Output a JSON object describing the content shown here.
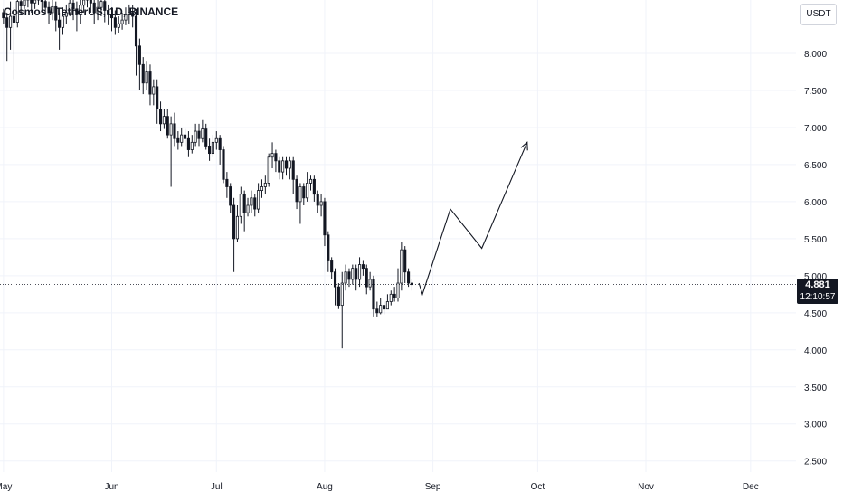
{
  "header": {
    "symbol_title": "Cosmos / TetherUS, 1D, BINANCE"
  },
  "toolbar": {
    "currency_label": "USDT"
  },
  "last_price": {
    "price": "4.881",
    "countdown": "12:10:57",
    "value": 4.881
  },
  "colors": {
    "candle": "#131722",
    "grid": "#f0f3fa",
    "axis_text": "#131722",
    "price_line": "#131722"
  },
  "chart_data": {
    "type": "candlestick",
    "y_ticks": [
      "8.000",
      "7.500",
      "7.000",
      "6.500",
      "6.000",
      "5.500",
      "5.000",
      "4.500",
      "4.000",
      "3.500",
      "3.000",
      "2.500"
    ],
    "ylim": [
      2.35,
      8.72
    ],
    "x_ticks": [
      {
        "label": "May",
        "day": 0
      },
      {
        "label": "Jun",
        "day": 31
      },
      {
        "label": "Jul",
        "day": 61
      },
      {
        "label": "Aug",
        "day": 92
      },
      {
        "label": "Sep",
        "day": 123
      },
      {
        "label": "Oct",
        "day": 153
      },
      {
        "label": "Nov",
        "day": 184
      },
      {
        "label": "Dec",
        "day": 214
      }
    ],
    "x_range_days": [
      -1,
      227
    ],
    "candles": [
      [
        0,
        8.55,
        8.48,
        8.6,
        8.4
      ],
      [
        1,
        8.48,
        8.35,
        8.55,
        7.9
      ],
      [
        2,
        8.35,
        8.5,
        8.7,
        8.05
      ],
      [
        3,
        8.5,
        8.42,
        8.62,
        7.65
      ],
      [
        4,
        8.42,
        8.7,
        8.8,
        8.35
      ],
      [
        5,
        8.7,
        8.64,
        8.8,
        8.52
      ],
      [
        6,
        8.64,
        8.72,
        8.85,
        8.6
      ],
      [
        7,
        8.72,
        8.75,
        8.85,
        8.62
      ],
      [
        8,
        8.75,
        8.68,
        8.82,
        8.55
      ],
      [
        9,
        8.68,
        8.72,
        8.8,
        8.6
      ],
      [
        10,
        8.72,
        8.78,
        8.85,
        8.66
      ],
      [
        11,
        8.78,
        8.7,
        8.85,
        8.58
      ],
      [
        12,
        8.7,
        8.62,
        8.76,
        8.52
      ],
      [
        13,
        8.62,
        8.55,
        8.7,
        8.4
      ],
      [
        14,
        8.55,
        8.63,
        8.72,
        8.45
      ],
      [
        15,
        8.63,
        8.45,
        8.7,
        8.3
      ],
      [
        16,
        8.45,
        8.35,
        8.55,
        8.05
      ],
      [
        17,
        8.35,
        8.5,
        8.62,
        8.25
      ],
      [
        18,
        8.5,
        8.55,
        8.66,
        8.4
      ],
      [
        19,
        8.55,
        8.68,
        8.78,
        8.5
      ],
      [
        20,
        8.68,
        8.6,
        8.76,
        8.45
      ],
      [
        21,
        8.6,
        8.52,
        8.7,
        8.3
      ],
      [
        22,
        8.52,
        8.65,
        8.75,
        8.4
      ],
      [
        23,
        8.65,
        8.72,
        8.8,
        8.55
      ],
      [
        24,
        8.72,
        8.75,
        8.85,
        8.62
      ],
      [
        25,
        8.75,
        8.68,
        8.82,
        8.55
      ],
      [
        26,
        8.68,
        8.55,
        8.75,
        8.4
      ],
      [
        27,
        8.55,
        8.62,
        8.72,
        8.45
      ],
      [
        28,
        8.62,
        8.7,
        8.8,
        8.5
      ],
      [
        29,
        8.7,
        8.58,
        8.78,
        8.42
      ],
      [
        30,
        8.58,
        8.52,
        8.66,
        8.38
      ],
      [
        31,
        8.52,
        8.48,
        8.62,
        8.3
      ],
      [
        32,
        8.48,
        8.35,
        8.58,
        8.25
      ],
      [
        33,
        8.35,
        8.4,
        8.5,
        8.28
      ],
      [
        34,
        8.4,
        8.45,
        8.55,
        8.32
      ],
      [
        35,
        8.45,
        8.52,
        8.62,
        8.38
      ],
      [
        36,
        8.52,
        8.55,
        8.66,
        8.4
      ],
      [
        37,
        8.55,
        8.5,
        8.65,
        8.35
      ],
      [
        38,
        8.5,
        8.1,
        8.6,
        7.7
      ],
      [
        39,
        8.1,
        7.85,
        8.2,
        7.5
      ],
      [
        40,
        7.85,
        7.6,
        7.95,
        7.45
      ],
      [
        41,
        7.6,
        7.75,
        7.9,
        7.5
      ],
      [
        42,
        7.75,
        7.45,
        7.85,
        7.3
      ],
      [
        43,
        7.45,
        7.55,
        7.65,
        7.3
      ],
      [
        44,
        7.55,
        7.25,
        7.65,
        7.05
      ],
      [
        45,
        7.25,
        7.05,
        7.35,
        6.95
      ],
      [
        46,
        7.05,
        7.15,
        7.25,
        6.98
      ],
      [
        47,
        7.15,
        6.9,
        7.25,
        6.85
      ],
      [
        48,
        6.9,
        7.05,
        7.15,
        6.2
      ],
      [
        49,
        7.05,
        6.85,
        7.2,
        6.75
      ],
      [
        50,
        6.85,
        6.8,
        6.95,
        6.7
      ],
      [
        51,
        6.8,
        6.9,
        7.0,
        6.75
      ],
      [
        52,
        6.9,
        6.85,
        6.98,
        6.75
      ],
      [
        53,
        6.85,
        6.7,
        6.95,
        6.6
      ],
      [
        54,
        6.7,
        6.8,
        6.9,
        6.65
      ],
      [
        55,
        6.8,
        6.95,
        7.05,
        6.75
      ],
      [
        56,
        6.95,
        6.85,
        7.05,
        6.75
      ],
      [
        57,
        6.85,
        6.98,
        7.1,
        6.8
      ],
      [
        58,
        6.98,
        6.75,
        7.05,
        6.7
      ],
      [
        59,
        6.75,
        6.65,
        6.85,
        6.55
      ],
      [
        60,
        6.65,
        6.8,
        6.9,
        6.6
      ],
      [
        61,
        6.8,
        6.85,
        6.95,
        6.7
      ],
      [
        62,
        6.85,
        6.7,
        6.9,
        6.5
      ],
      [
        63,
        6.7,
        6.3,
        6.75,
        6.25
      ],
      [
        64,
        6.3,
        6.2,
        6.4,
        6.05
      ],
      [
        65,
        6.2,
        5.95,
        6.25,
        5.85
      ],
      [
        66,
        5.95,
        5.5,
        6.05,
        5.05
      ],
      [
        67,
        5.5,
        5.8,
        5.95,
        5.45
      ],
      [
        68,
        5.8,
        6.1,
        6.2,
        5.7
      ],
      [
        69,
        6.1,
        5.85,
        6.15,
        5.6
      ],
      [
        70,
        5.85,
        5.95,
        6.05,
        5.8
      ],
      [
        71,
        5.95,
        6.05,
        6.15,
        5.85
      ],
      [
        72,
        6.05,
        5.9,
        6.1,
        5.8
      ],
      [
        73,
        5.9,
        6.15,
        6.25,
        5.85
      ],
      [
        74,
        6.15,
        6.2,
        6.3,
        6.05
      ],
      [
        75,
        6.2,
        6.25,
        6.35,
        6.1
      ],
      [
        76,
        6.25,
        6.6,
        6.65,
        6.2
      ],
      [
        77,
        6.6,
        6.65,
        6.8,
        6.45
      ],
      [
        78,
        6.65,
        6.55,
        6.7,
        6.4
      ],
      [
        79,
        6.55,
        6.4,
        6.6,
        6.3
      ],
      [
        80,
        6.4,
        6.55,
        6.6,
        6.3
      ],
      [
        81,
        6.55,
        6.45,
        6.6,
        6.35
      ],
      [
        82,
        6.45,
        6.55,
        6.6,
        6.3
      ],
      [
        83,
        6.55,
        6.3,
        6.6,
        6.1
      ],
      [
        84,
        6.3,
        6.0,
        6.35,
        5.9
      ],
      [
        85,
        6.0,
        6.2,
        6.25,
        5.7
      ],
      [
        86,
        6.2,
        6.05,
        6.25,
        5.95
      ],
      [
        87,
        6.05,
        6.25,
        6.4,
        6.0
      ],
      [
        88,
        6.25,
        6.3,
        6.35,
        6.15
      ],
      [
        89,
        6.3,
        6.1,
        6.35,
        6.0
      ],
      [
        90,
        6.1,
        5.95,
        6.15,
        5.85
      ],
      [
        91,
        5.95,
        6.0,
        6.1,
        5.8
      ],
      [
        92,
        6.0,
        5.55,
        6.05,
        5.4
      ],
      [
        93,
        5.55,
        5.2,
        5.6,
        5.05
      ],
      [
        94,
        5.2,
        5.05,
        5.25,
        4.95
      ],
      [
        95,
        5.05,
        4.85,
        5.1,
        4.6
      ],
      [
        96,
        4.85,
        4.6,
        4.9,
        4.55
      ],
      [
        97,
        4.6,
        4.9,
        5.05,
        4.02
      ],
      [
        98,
        4.9,
        5.05,
        5.15,
        4.8
      ],
      [
        99,
        5.05,
        4.95,
        5.1,
        4.85
      ],
      [
        100,
        4.95,
        5.1,
        5.15,
        4.88
      ],
      [
        101,
        5.1,
        4.95,
        5.15,
        4.8
      ],
      [
        102,
        4.95,
        5.15,
        5.25,
        4.85
      ],
      [
        103,
        5.15,
        5.1,
        5.2,
        5.0
      ],
      [
        104,
        5.1,
        4.85,
        5.15,
        4.75
      ],
      [
        105,
        4.85,
        4.95,
        5.05,
        4.8
      ],
      [
        106,
        4.95,
        4.55,
        5.0,
        4.45
      ],
      [
        107,
        4.55,
        4.5,
        4.65,
        4.45
      ],
      [
        108,
        4.5,
        4.6,
        4.7,
        4.48
      ],
      [
        109,
        4.6,
        4.55,
        4.65,
        4.48
      ],
      [
        110,
        4.55,
        4.65,
        4.75,
        4.55
      ],
      [
        111,
        4.65,
        4.75,
        4.8,
        4.6
      ],
      [
        112,
        4.75,
        4.7,
        4.85,
        4.65
      ],
      [
        113,
        4.7,
        4.9,
        5.1,
        4.65
      ],
      [
        114,
        4.9,
        5.35,
        5.45,
        4.8
      ],
      [
        115,
        5.35,
        5.05,
        5.4,
        4.9
      ],
      [
        116,
        5.05,
        4.9,
        5.1,
        4.85
      ],
      [
        117,
        4.9,
        4.88,
        4.95,
        4.8
      ]
    ],
    "projection": [
      [
        119,
        4.9
      ],
      [
        120,
        4.75
      ],
      [
        128,
        5.9
      ],
      [
        137,
        5.37
      ],
      [
        150,
        6.8
      ]
    ]
  }
}
